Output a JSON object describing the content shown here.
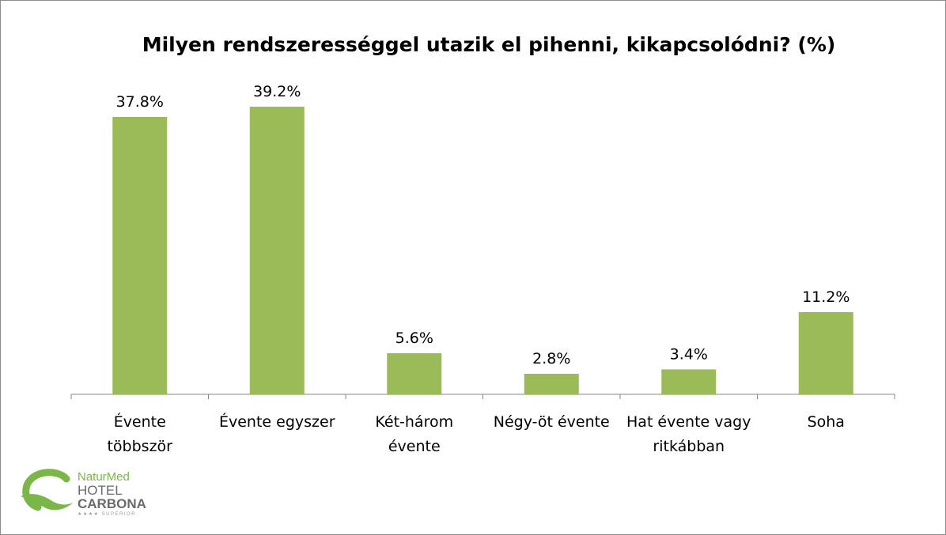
{
  "chart_data": {
    "type": "bar",
    "title": "Milyen rendszerességgel utazik el pihenni, kikapcsolódni? (%)",
    "categories": [
      [
        "Évente",
        "többször"
      ],
      [
        "Évente egyszer"
      ],
      [
        "Két-három",
        "évente"
      ],
      [
        "Négy-öt évente"
      ],
      [
        "Hat évente vagy",
        "ritkábban"
      ],
      [
        "Soha"
      ]
    ],
    "values": [
      37.8,
      39.2,
      5.6,
      2.8,
      3.4,
      11.2
    ],
    "data_labels": [
      "37.8%",
      "39.2%",
      "5.6%",
      "2.8%",
      "3.4%",
      "11.2%"
    ],
    "ylim": [
      0,
      39.2
    ],
    "bar_color": "#9bbb59",
    "axis_color": "#868686",
    "grid": false,
    "legend": "none"
  },
  "logo": {
    "line1": "NaturMed",
    "line2": "HOTEL",
    "line3": "CARBONA",
    "line4": "★★★★ SUPERIOR",
    "brand_color": "#7ab648"
  }
}
